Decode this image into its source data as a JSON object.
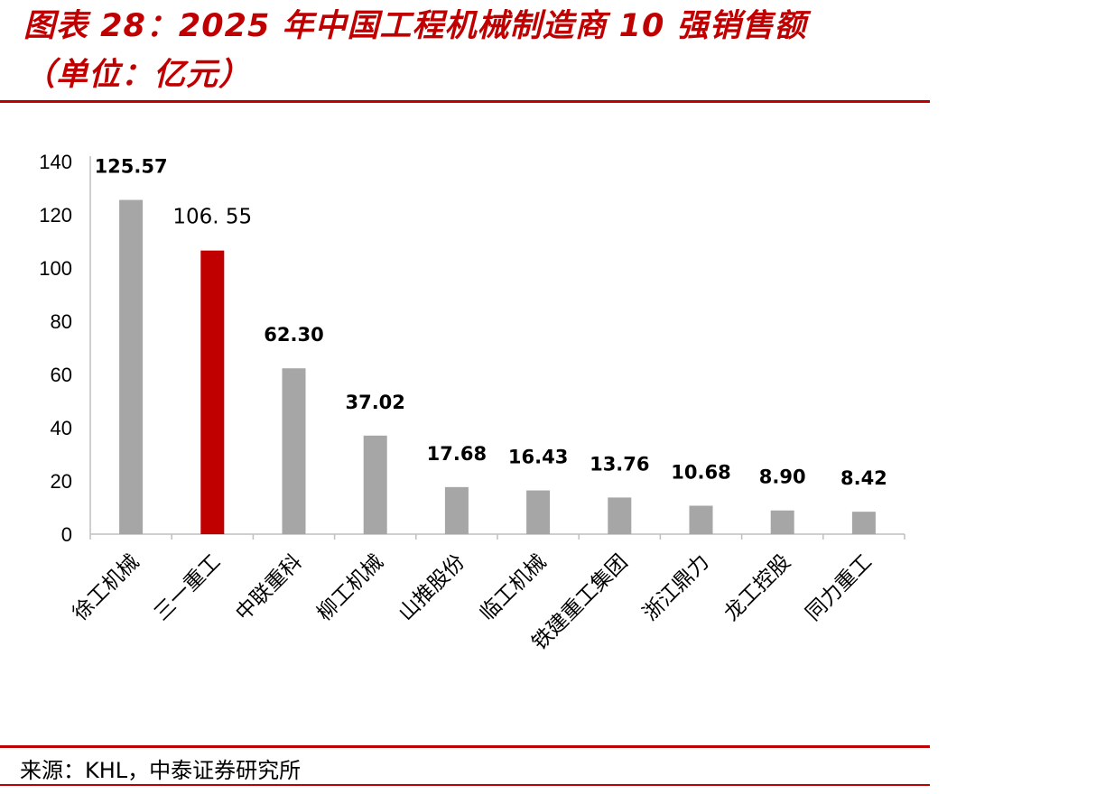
{
  "title": {
    "line1": "图表 28：2025 年中国工程机械制造商 10 强销售额",
    "line2": "（单位：亿元）"
  },
  "source": "来源：KHL，中泰证券研究所",
  "colors": {
    "accent": "#c00000",
    "bar_default": "#a6a6a6",
    "bar_highlight": "#c00000",
    "axis": "#bfbfbf"
  },
  "chart_data": {
    "type": "bar",
    "categories": [
      "徐工机械",
      "三一重工",
      "中联重科",
      "柳工机械",
      "山推股份",
      "临工机械",
      "铁建重工集团",
      "浙江鼎力",
      "龙工控股",
      "同力重工"
    ],
    "values": [
      125.57,
      106.55,
      62.3,
      37.02,
      17.68,
      16.43,
      13.76,
      10.68,
      8.9,
      8.42
    ],
    "data_labels": [
      "125.57",
      "106. 55",
      "62.30",
      "37.02",
      "17.68",
      "16.43",
      "13.76",
      "10.68",
      "8.90",
      "8.42"
    ],
    "highlight_index": 1,
    "ylim": [
      0,
      140
    ],
    "yticks": [
      0,
      20,
      40,
      60,
      80,
      100,
      120,
      140
    ],
    "xlabel": "",
    "ylabel": "",
    "grid": false,
    "legend": "none"
  }
}
